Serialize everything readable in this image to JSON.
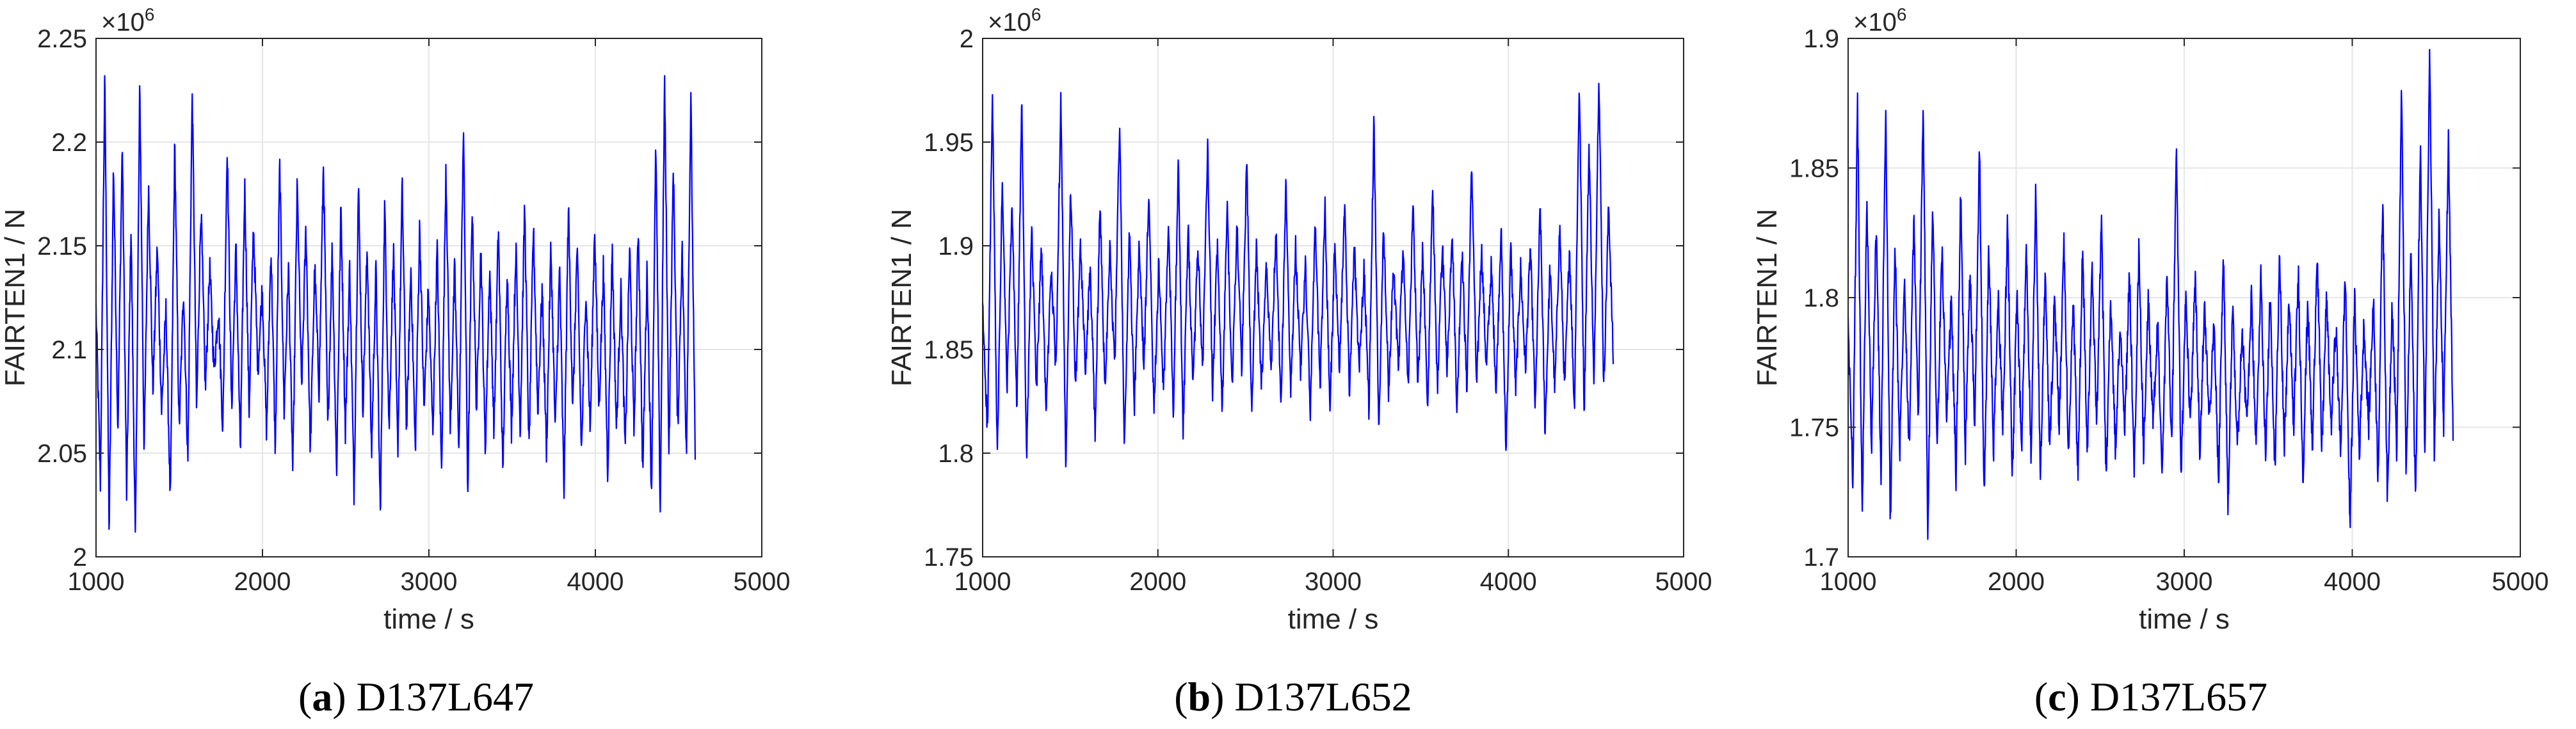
{
  "colors": {
    "series": "#0000ff",
    "grid": "#e6e6e6",
    "axes": "#262626"
  },
  "chart_data": [
    {
      "type": "line",
      "caption_letter": "a",
      "caption_title": "D137L647",
      "xlabel": "time / s",
      "ylabel": "FAIRTEN1 / N",
      "exponent": "×10",
      "exponent_power": "6",
      "xlim": [
        1000,
        5000
      ],
      "ylim": [
        2.0,
        2.25
      ],
      "xticks": [
        "1000",
        "2000",
        "3000",
        "4000",
        "5000"
      ],
      "yticks": [
        "2",
        "2.05",
        "2.1",
        "2.15",
        "2.2",
        "2.25"
      ],
      "grid": true,
      "series": [
        {
          "x_range": [
            1000,
            4600
          ],
          "mean": 2.11,
          "min": 2.005,
          "max": 2.232,
          "values": [
            2.12,
            2.035,
            2.232,
            2.01,
            2.19,
            2.06,
            2.2,
            2.03,
            2.16,
            2.005,
            2.228,
            2.05,
            2.18,
            2.08,
            2.15,
            2.07,
            2.12,
            2.025,
            2.2,
            2.06,
            2.13,
            2.045,
            2.225,
            2.07,
            2.17,
            2.08,
            2.14,
            2.09,
            2.12,
            2.06,
            2.2,
            2.07,
            2.15,
            2.05,
            2.18,
            2.07,
            2.16,
            2.09,
            2.13,
            2.06,
            2.15,
            2.05,
            2.19,
            2.07,
            2.14,
            2.04,
            2.18,
            2.08,
            2.16,
            2.05,
            2.14,
            2.08,
            2.19,
            2.06,
            2.15,
            2.04,
            2.17,
            2.06,
            2.14,
            2.03,
            2.18,
            2.07,
            2.15,
            2.05,
            2.14,
            2.02,
            2.17,
            2.06,
            2.15,
            2.05,
            2.18,
            2.06,
            2.14,
            2.05,
            2.16,
            2.07,
            2.13,
            2.06,
            2.15,
            2.04,
            2.19,
            2.06,
            2.14,
            2.05,
            2.21,
            2.03,
            2.17,
            2.07,
            2.15,
            2.05,
            2.14,
            2.06,
            2.16,
            2.04,
            2.14,
            2.06,
            2.15,
            2.06,
            2.17,
            2.05,
            2.16,
            2.07,
            2.13,
            2.05,
            2.15,
            2.06,
            2.14,
            2.03,
            2.17,
            2.07,
            2.15,
            2.05,
            2.13,
            2.06,
            2.16,
            2.07,
            2.14,
            2.04,
            2.15,
            2.06,
            2.13,
            2.05,
            2.15,
            2.06,
            2.16,
            2.04,
            2.14,
            2.03,
            2.2,
            2.02,
            2.23,
            2.05,
            2.19,
            2.06,
            2.15,
            2.05,
            2.222,
            2.045
          ]
        }
      ]
    },
    {
      "type": "line",
      "caption_letter": "b",
      "caption_title": "D137L652",
      "xlabel": "time / s",
      "ylabel": "FAIRTEN1 / N",
      "exponent": "×10",
      "exponent_power": "6",
      "xlim": [
        1000,
        5000
      ],
      "ylim": [
        1.75,
        2.0
      ],
      "xticks": [
        "1000",
        "2000",
        "3000",
        "4000",
        "5000"
      ],
      "yticks": [
        "1.75",
        "1.8",
        "1.85",
        "1.9",
        "1.95",
        "2"
      ],
      "grid": true,
      "series": [
        {
          "x_range": [
            1000,
            4600
          ],
          "mean": 1.87,
          "min": 1.788,
          "max": 1.985,
          "values": [
            1.87,
            1.81,
            1.972,
            1.795,
            1.93,
            1.83,
            1.92,
            1.82,
            1.97,
            1.794,
            1.91,
            1.83,
            1.9,
            1.82,
            1.89,
            1.84,
            1.975,
            1.788,
            1.93,
            1.83,
            1.9,
            1.84,
            1.89,
            1.81,
            1.92,
            1.83,
            1.9,
            1.84,
            1.96,
            1.8,
            1.91,
            1.82,
            1.9,
            1.84,
            1.93,
            1.82,
            1.89,
            1.83,
            1.91,
            1.82,
            1.94,
            1.81,
            1.91,
            1.83,
            1.9,
            1.84,
            1.95,
            1.83,
            1.9,
            1.82,
            1.92,
            1.83,
            1.91,
            1.84,
            1.94,
            1.82,
            1.9,
            1.83,
            1.89,
            1.84,
            1.91,
            1.82,
            1.93,
            1.83,
            1.9,
            1.84,
            1.89,
            1.82,
            1.91,
            1.83,
            1.92,
            1.82,
            1.9,
            1.84,
            1.92,
            1.83,
            1.9,
            1.84,
            1.89,
            1.82,
            1.96,
            1.81,
            1.91,
            1.83,
            1.89,
            1.84,
            1.9,
            1.83,
            1.92,
            1.83,
            1.9,
            1.82,
            1.93,
            1.83,
            1.9,
            1.84,
            1.91,
            1.82,
            1.9,
            1.83,
            1.94,
            1.83,
            1.9,
            1.84,
            1.89,
            1.83,
            1.91,
            1.8,
            1.9,
            1.83,
            1.89,
            1.84,
            1.9,
            1.82,
            1.92,
            1.81,
            1.89,
            1.83,
            1.91,
            1.83,
            1.9,
            1.82,
            1.98,
            1.82,
            1.95,
            1.83,
            1.985,
            1.83,
            1.92,
            1.84
          ]
        }
      ]
    },
    {
      "type": "line",
      "caption_letter": "c",
      "caption_title": "D137L657",
      "xlabel": "time / s",
      "ylabel": "FAIRTEN1 / N",
      "exponent": "×10",
      "exponent_power": "6",
      "xlim": [
        1000,
        5000
      ],
      "ylim": [
        1.7,
        1.9
      ],
      "xticks": [
        "1000",
        "2000",
        "3000",
        "4000",
        "5000"
      ],
      "yticks": [
        "1.7",
        "1.75",
        "1.8",
        "1.85",
        "1.9"
      ],
      "grid": true,
      "series": [
        {
          "x_range": [
            1000,
            4600
          ],
          "mean": 1.785,
          "min": 1.705,
          "max": 1.9,
          "values": [
            1.79,
            1.73,
            1.875,
            1.715,
            1.84,
            1.74,
            1.83,
            1.73,
            1.875,
            1.712,
            1.82,
            1.74,
            1.81,
            1.74,
            1.83,
            1.75,
            1.878,
            1.705,
            1.84,
            1.74,
            1.82,
            1.75,
            1.8,
            1.73,
            1.84,
            1.74,
            1.81,
            1.75,
            1.86,
            1.72,
            1.82,
            1.74,
            1.8,
            1.75,
            1.83,
            1.73,
            1.8,
            1.74,
            1.82,
            1.74,
            1.84,
            1.73,
            1.81,
            1.74,
            1.8,
            1.75,
            1.82,
            1.74,
            1.8,
            1.73,
            1.82,
            1.74,
            1.81,
            1.75,
            1.83,
            1.73,
            1.8,
            1.74,
            1.79,
            1.75,
            1.81,
            1.73,
            1.82,
            1.74,
            1.8,
            1.75,
            1.79,
            1.73,
            1.81,
            1.74,
            1.86,
            1.73,
            1.8,
            1.75,
            1.81,
            1.74,
            1.8,
            1.75,
            1.79,
            1.73,
            1.82,
            1.72,
            1.8,
            1.74,
            1.79,
            1.75,
            1.8,
            1.74,
            1.81,
            1.74,
            1.8,
            1.73,
            1.82,
            1.74,
            1.8,
            1.75,
            1.81,
            1.73,
            1.8,
            1.74,
            1.82,
            1.74,
            1.8,
            1.75,
            1.79,
            1.74,
            1.81,
            1.71,
            1.8,
            1.74,
            1.79,
            1.75,
            1.8,
            1.73,
            1.84,
            1.72,
            1.8,
            1.74,
            1.88,
            1.73,
            1.82,
            1.72,
            1.86,
            1.74,
            1.9,
            1.74,
            1.83,
            1.75,
            1.86,
            1.745
          ]
        }
      ]
    }
  ]
}
